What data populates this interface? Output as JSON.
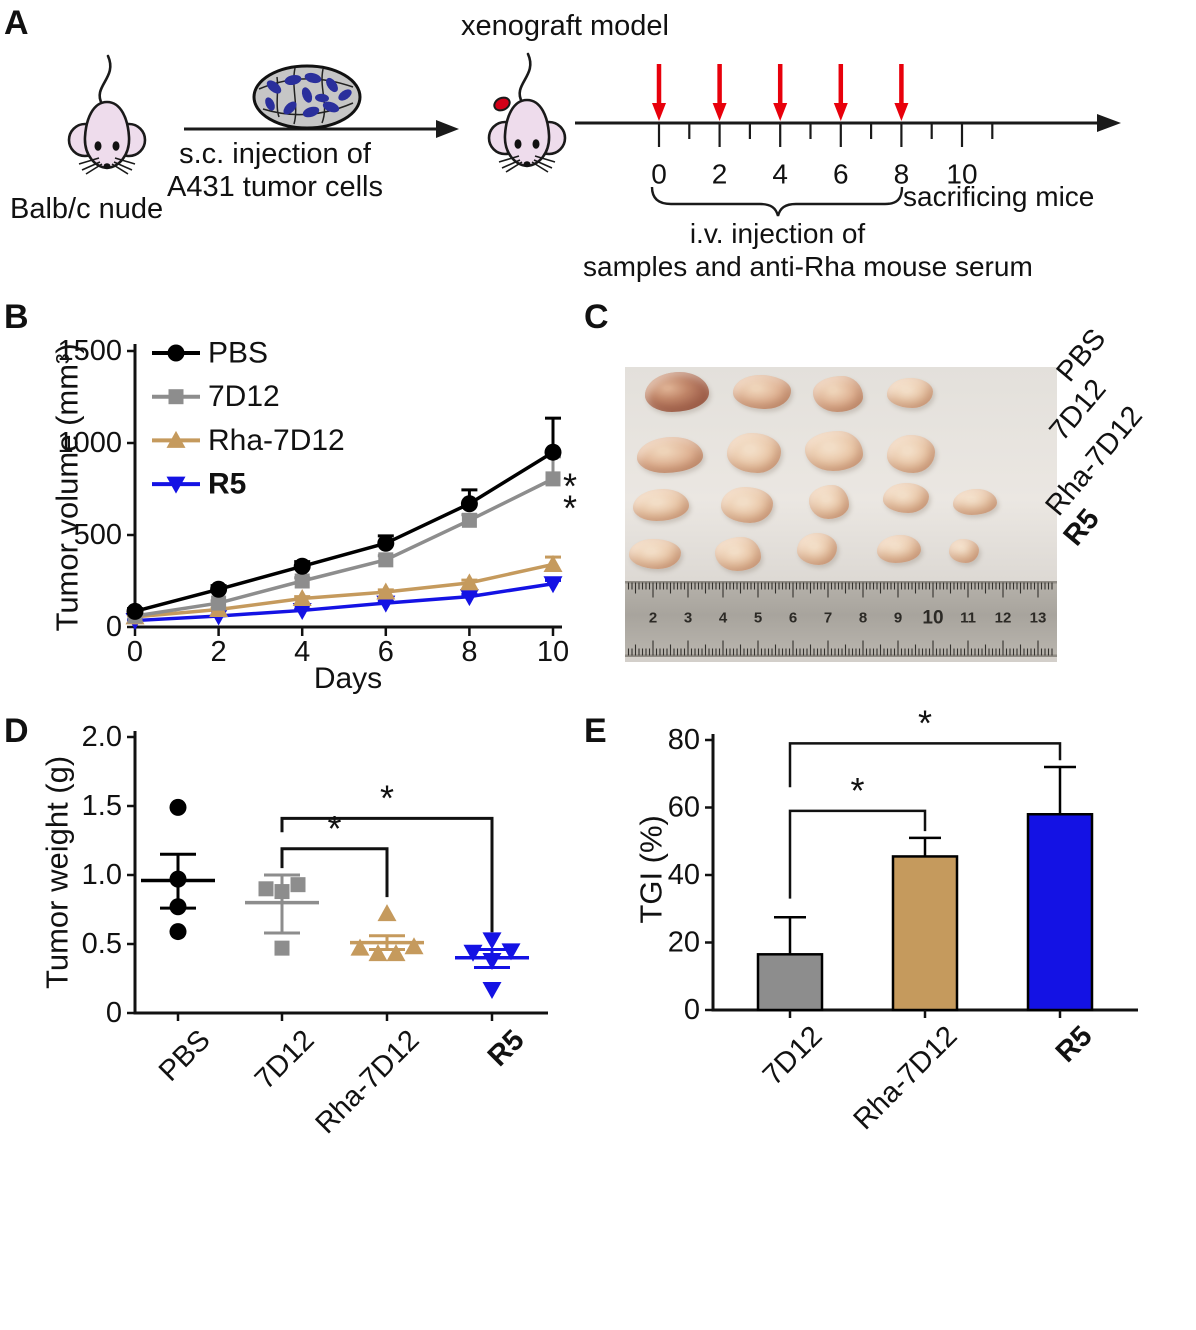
{
  "figure": {
    "panel_labels": [
      "A",
      "B",
      "C",
      "D",
      "E"
    ]
  },
  "panel_a": {
    "title": "xenograft model",
    "source_mouse_label": "Balb/c nude",
    "arrow_caption": [
      "s.c. injection of",
      "A431 tumor cells"
    ],
    "timeline": {
      "tick_labels": [
        "0",
        "2",
        "4",
        "6",
        "8",
        "10"
      ],
      "injection_day_ticks": [
        0,
        2,
        4,
        6,
        8
      ],
      "arrow_color": "#e8000b"
    },
    "brace_caption": [
      "i.v. injection of",
      "samples and anti-Rha mouse serum"
    ],
    "sacrifice_label": "sacrificing mice"
  },
  "chart_data": [
    {
      "id": "tumor-volume",
      "type": "line",
      "xlabel": "Days",
      "ylabel": "Tumor volume (mm³)",
      "x": [
        0,
        2,
        4,
        6,
        8,
        10
      ],
      "xlim": [
        0,
        10.3
      ],
      "ylim": [
        0,
        1500
      ],
      "xticks": [
        0,
        2,
        4,
        6,
        8,
        10
      ],
      "yticks": [
        0,
        500,
        1000,
        1500
      ],
      "grid": false,
      "legend_position": "top-left",
      "series": [
        {
          "name": "PBS",
          "color": "#000000",
          "marker": "circle",
          "values": [
            85,
            205,
            330,
            455,
            670,
            950
          ],
          "err_up": [
            15,
            20,
            25,
            40,
            75,
            185
          ]
        },
        {
          "name": "7D12",
          "color": "#8d8d8d",
          "marker": "square",
          "values": [
            60,
            130,
            250,
            365,
            580,
            805
          ],
          "err_up": [
            10,
            12,
            18,
            22,
            30,
            120
          ]
        },
        {
          "name": "Rha-7D12",
          "color": "#c59a5d",
          "marker": "triangle-up",
          "values": [
            55,
            95,
            155,
            190,
            240,
            340
          ],
          "err_up": [
            6,
            8,
            10,
            12,
            15,
            40
          ]
        },
        {
          "name": "R5",
          "color": "#1412e4",
          "marker": "triangle-down",
          "bold": true,
          "values": [
            35,
            60,
            90,
            130,
            165,
            235
          ],
          "err_up": [
            4,
            5,
            8,
            10,
            12,
            18
          ]
        }
      ],
      "annotation": {
        "text": "**",
        "at": "7D12 day 10"
      }
    },
    {
      "id": "tumor-weight",
      "type": "scatter",
      "ylabel": "Tumor weight (g)",
      "categories": [
        "PBS",
        "7D12",
        "Rha-7D12",
        "R5"
      ],
      "bold_categories": [
        "R5"
      ],
      "ylim": [
        0,
        2
      ],
      "yticks": [
        "0",
        "0.5",
        "1.0",
        "1.5",
        "2.0"
      ],
      "groups": [
        {
          "name": "PBS",
          "color": "#000000",
          "marker": "circle",
          "points": [
            1.49,
            0.97,
            0.77,
            0.59
          ],
          "jitter": [
            0,
            0,
            0,
            0
          ],
          "mean": 0.96,
          "err_lo": 0.76,
          "err_hi": 1.15
        },
        {
          "name": "7D12",
          "color": "#8d8d8d",
          "marker": "square",
          "points": [
            0.9,
            0.88,
            0.93,
            0.47
          ],
          "jitter": [
            -16,
            0,
            16,
            0
          ],
          "mean": 0.8,
          "err_lo": 0.58,
          "err_hi": 1.0
        },
        {
          "name": "Rha-7D12",
          "color": "#c59a5d",
          "marker": "triangle-up",
          "points": [
            0.72,
            0.47,
            0.43,
            0.43,
            0.48
          ],
          "jitter": [
            0,
            -27,
            -9,
            9,
            27
          ],
          "mean": 0.51,
          "err_lo": 0.46,
          "err_hi": 0.56
        },
        {
          "name": "R5",
          "color": "#1412e4",
          "marker": "triangle-down",
          "points": [
            0.53,
            0.44,
            0.45,
            0.38,
            0.17
          ],
          "jitter": [
            0,
            -19,
            19,
            0,
            0
          ],
          "mean": 0.4,
          "err_lo": 0.33,
          "err_hi": 0.46
        }
      ],
      "sig_brackets": [
        {
          "from": 1,
          "to": 2,
          "y": 1.19,
          "from_leg": 1.05,
          "to_leg": 0.84,
          "label": "*"
        },
        {
          "from": 1,
          "to": 3,
          "y": 1.41,
          "from_leg": 1.31,
          "to_leg": 0.585,
          "label": "*"
        }
      ]
    },
    {
      "id": "tgi",
      "type": "bar",
      "ylabel": "TGI (%)",
      "categories": [
        "7D12",
        "Rha-7D12",
        "R5"
      ],
      "bold_categories": [
        "R5"
      ],
      "values": [
        16.5,
        45.5,
        58
      ],
      "err_up": [
        11,
        5.5,
        14
      ],
      "colors": [
        "#8d8d8d",
        "#c59a5d",
        "#1412e4"
      ],
      "ylim": [
        0,
        80
      ],
      "yticks": [
        0,
        20,
        40,
        60,
        80
      ],
      "sig_brackets": [
        {
          "from": 0,
          "to": 1,
          "y": 59,
          "from_leg": 33,
          "to_leg": 53,
          "label": "*"
        },
        {
          "from": 0,
          "to": 2,
          "y": 79,
          "from_leg": 66,
          "to_leg": 74,
          "label": "*"
        }
      ]
    }
  ],
  "panel_c": {
    "row_labels": [
      "PBS",
      "7D12",
      "Rha-7D12",
      "R5"
    ],
    "bold_labels": [
      "R5"
    ],
    "ruler_numbers": [
      "2",
      "3",
      "4",
      "5",
      "6",
      "7",
      "8",
      "9",
      "10",
      "11",
      "12",
      "13"
    ],
    "rows": [
      {
        "label": "PBS",
        "tumor_count": 4
      },
      {
        "label": "7D12",
        "tumor_count": 4
      },
      {
        "label": "Rha-7D12",
        "tumor_count": 5
      },
      {
        "label": "R5",
        "tumor_count": 5
      }
    ]
  }
}
